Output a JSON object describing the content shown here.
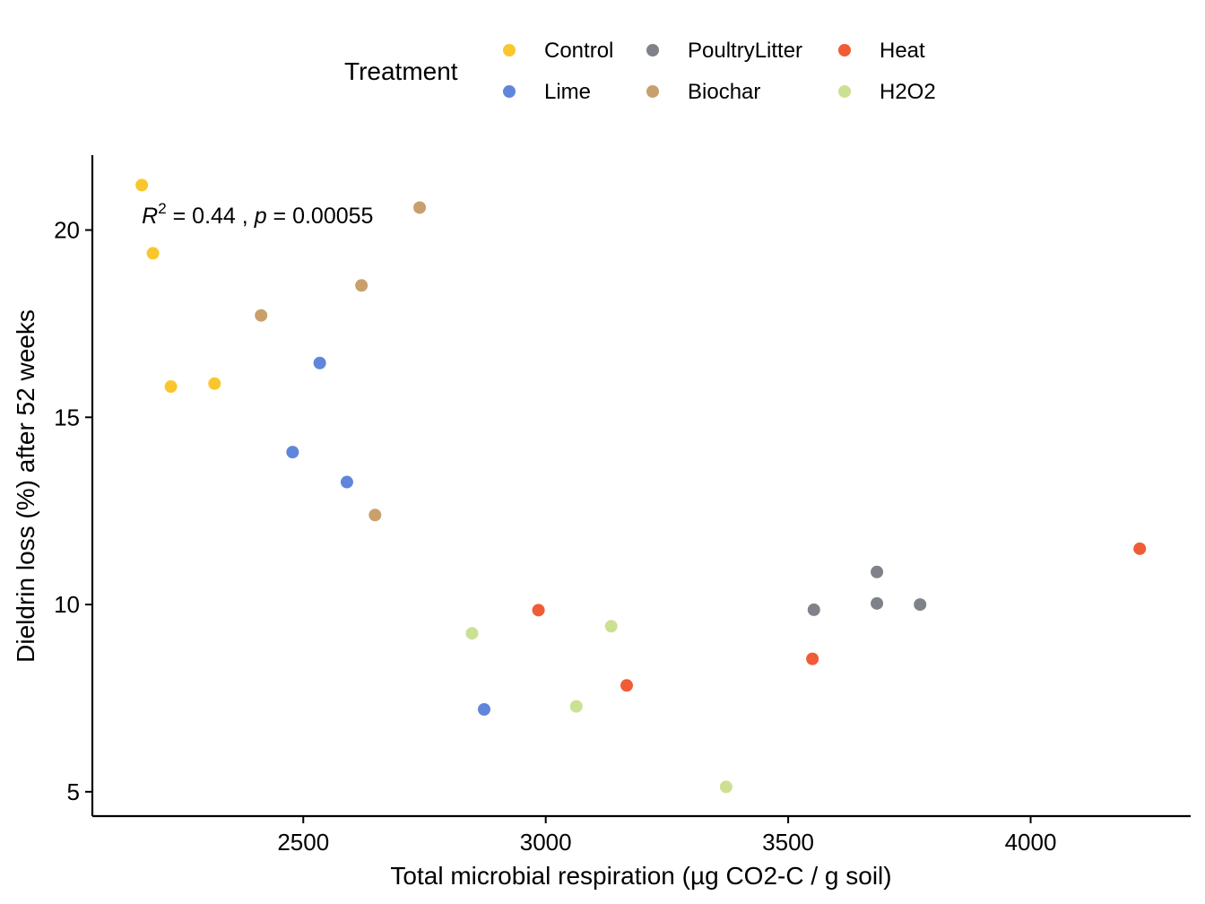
{
  "chart_data": {
    "type": "scatter",
    "xlabel": "Total microbial respiration (µg CO2-C / g soil)",
    "ylabel": "Dieldrin loss (%) after 52 weeks",
    "xlim": [
      2065,
      4330
    ],
    "ylim": [
      4.35,
      22.0
    ],
    "xticks": [
      2500,
      3000,
      3500,
      4000
    ],
    "yticks": [
      5,
      10,
      15,
      20
    ],
    "grid": false,
    "legend": {
      "title": "Treatment",
      "placement": "top",
      "entries": [
        {
          "name": "Control",
          "color": "#F9C72C"
        },
        {
          "name": "PoultryLitter",
          "color": "#7F8389"
        },
        {
          "name": "Heat",
          "color": "#F05C36"
        },
        {
          "name": "Lime",
          "color": "#5F86DB"
        },
        {
          "name": "Biochar",
          "color": "#C9A06B"
        },
        {
          "name": "H2O2",
          "color": "#CCE093"
        }
      ]
    },
    "annotation": {
      "r2_symbol": "R",
      "r2_superscript": "2",
      "r2_value": " = 0.44 ,",
      "p_symbol": "p",
      "p_value": " = 0.00055",
      "x": 2167,
      "y": 20.4
    },
    "series": [
      {
        "name": "Control",
        "color": "#F9C72C",
        "points": [
          [
            2167,
            21.2
          ],
          [
            2190,
            19.38
          ],
          [
            2227,
            15.82
          ],
          [
            2317,
            15.9
          ]
        ]
      },
      {
        "name": "Lime",
        "color": "#5F86DB",
        "points": [
          [
            2534,
            16.45
          ],
          [
            2478,
            14.07
          ],
          [
            2590,
            13.27
          ],
          [
            2873,
            7.2
          ]
        ]
      },
      {
        "name": "Biochar",
        "color": "#C9A06B",
        "points": [
          [
            2740,
            20.6
          ],
          [
            2620,
            18.52
          ],
          [
            2413,
            17.72
          ],
          [
            2648,
            12.39
          ]
        ]
      },
      {
        "name": "PoultryLitter",
        "color": "#7F8389",
        "points": [
          [
            3683,
            10.87
          ],
          [
            3553,
            9.86
          ],
          [
            3683,
            10.03
          ],
          [
            3772,
            10.0
          ]
        ]
      },
      {
        "name": "Heat",
        "color": "#F05C36",
        "points": [
          [
            4225,
            11.49
          ],
          [
            2985,
            9.85
          ],
          [
            3550,
            8.55
          ],
          [
            3167,
            7.84
          ]
        ]
      },
      {
        "name": "H2O2",
        "color": "#CCE093",
        "points": [
          [
            2848,
            9.23
          ],
          [
            3135,
            9.42
          ],
          [
            3063,
            7.28
          ],
          [
            3372,
            5.13
          ]
        ]
      }
    ]
  }
}
